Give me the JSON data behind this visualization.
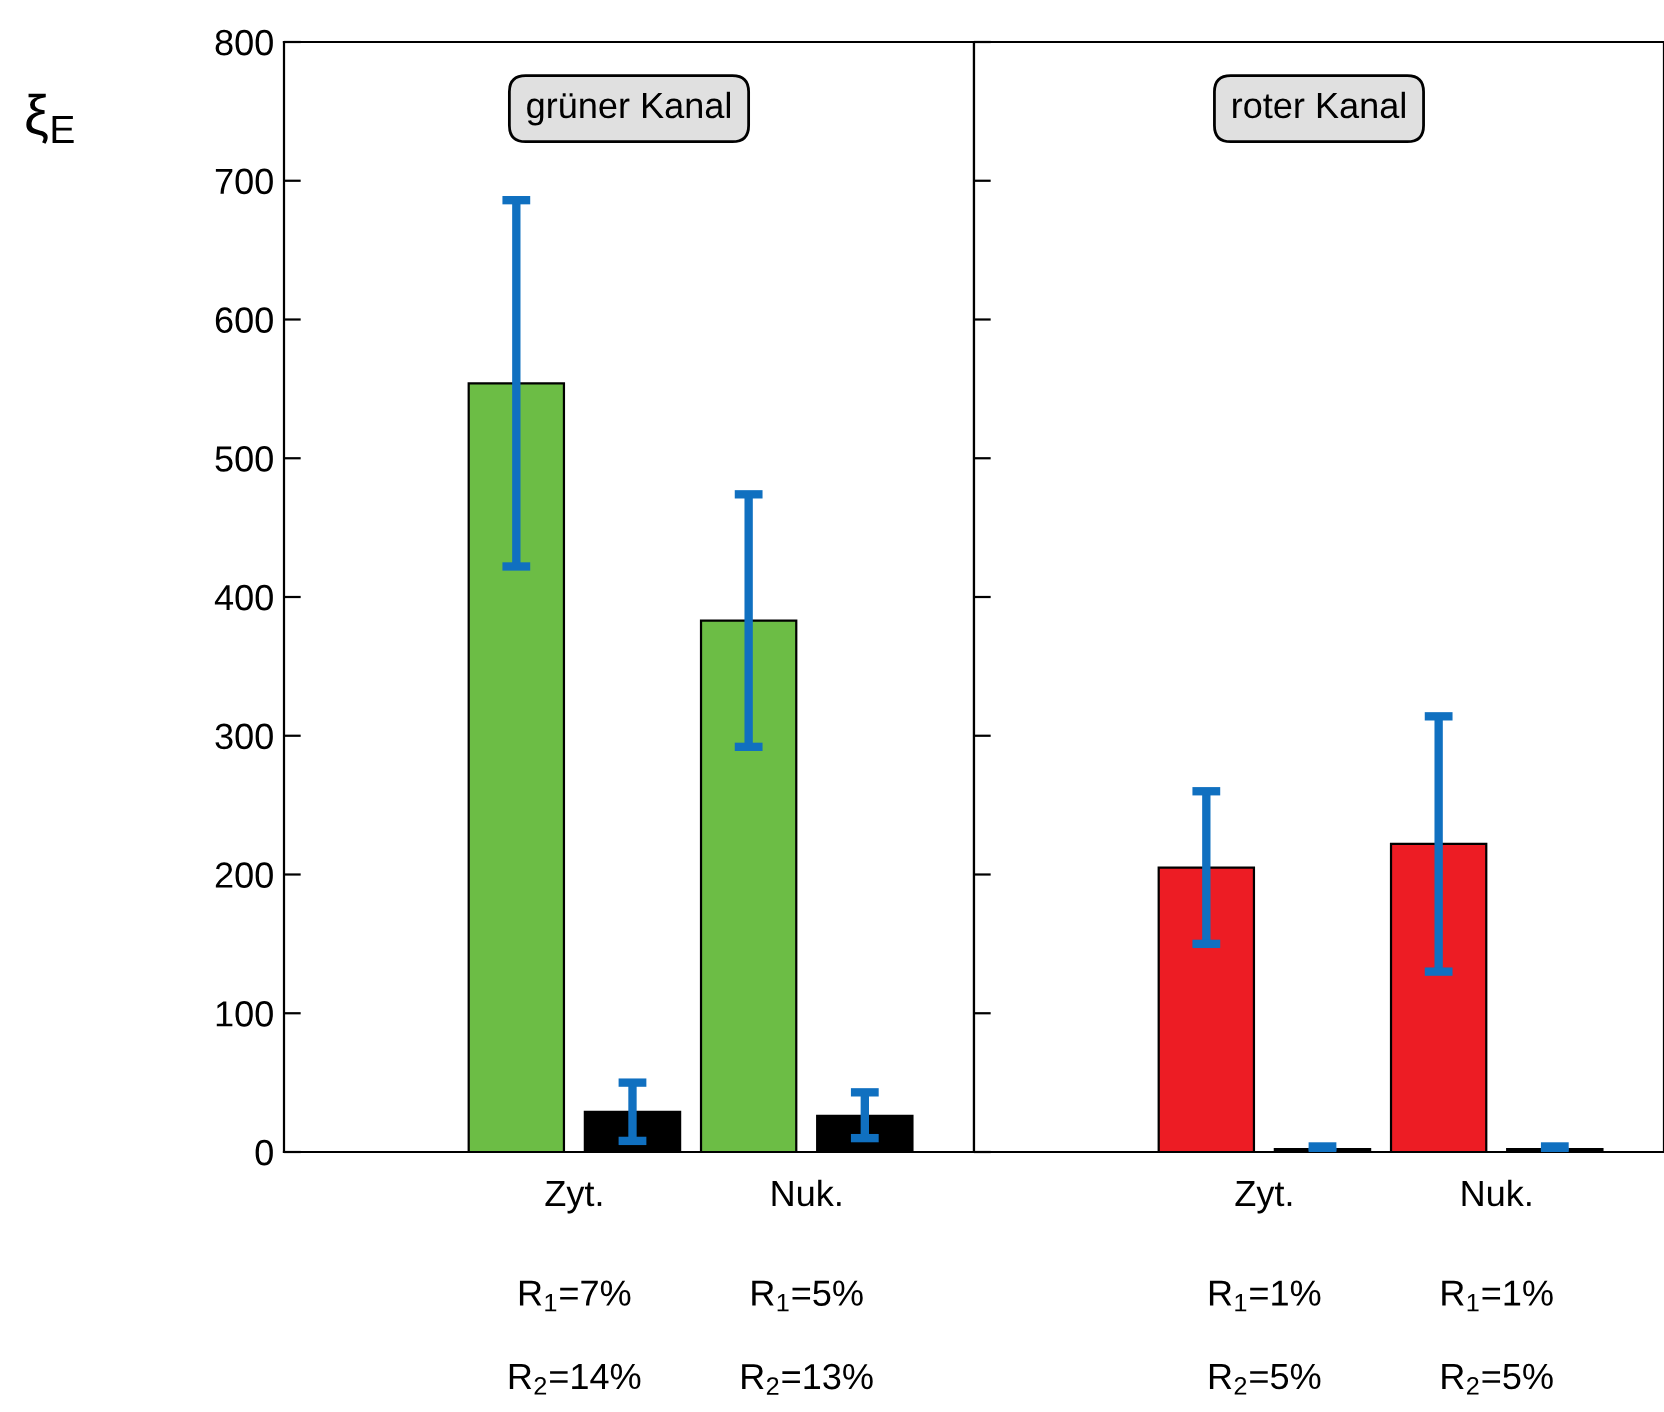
{
  "chart_data": [
    {
      "type": "bar",
      "title": "grüner Kanal",
      "ylabel": "ξ$_{E}$",
      "categories": [
        "Zyt.",
        "Nuk."
      ],
      "ylim": [
        0,
        800
      ],
      "yticks": [
        0,
        100,
        200,
        300,
        400,
        500,
        600,
        700,
        800
      ],
      "grid": false,
      "series": [
        {
          "color": "#6cbd45",
          "values": [
            554,
            383
          ],
          "errors": [
            [
              422,
              686
            ],
            [
              292,
              474
            ]
          ]
        },
        {
          "color": "#000000",
          "values": [
            29,
            26
          ],
          "errors": [
            [
              8,
              50
            ],
            [
              10,
              43
            ]
          ]
        }
      ],
      "annotations": [
        "R$_{1}$=7%",
        "R$_{2}$=14%",
        "R$_{1}$=5%",
        "R$_{2}$=13%"
      ]
    },
    {
      "type": "bar",
      "title": "roter Kanal",
      "categories": [
        "Zyt.",
        "Nuk."
      ],
      "ylim": [
        0,
        800
      ],
      "yticks": [
        0,
        100,
        200,
        300,
        400,
        500,
        600,
        700,
        800
      ],
      "tick_labels": "x",
      "grid": false,
      "series": [
        {
          "color": "#ed1c24",
          "values": [
            205,
            222
          ],
          "errors": [
            [
              150,
              260
            ],
            [
              130,
              314
            ]
          ]
        },
        {
          "color": "#000000",
          "values": [
            2,
            2
          ],
          "errors": [
            [
              0,
              4
            ],
            [
              0,
              4
            ]
          ]
        }
      ],
      "annotations": [
        "R$_{1}$=1%",
        "R$_{2}$=5%",
        "R$_{1}$=1%",
        "R$_{2}$=5%"
      ]
    }
  ]
}
